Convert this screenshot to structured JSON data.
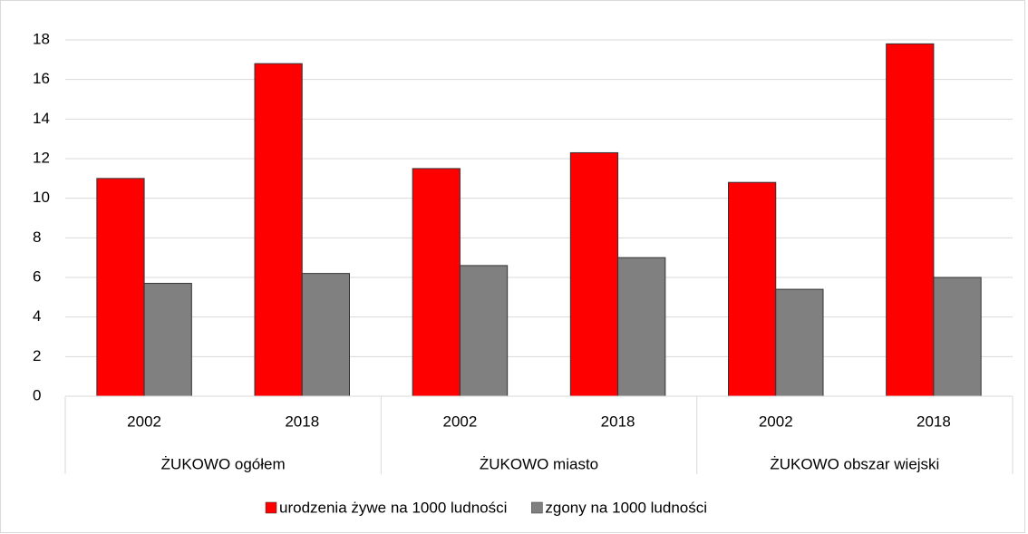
{
  "chart_data": {
    "type": "bar",
    "categories": [
      "2002",
      "2018",
      "2002",
      "2018",
      "2002",
      "2018"
    ],
    "groups": [
      "ŻUKOWO ogółem",
      "ŻUKOWO miasto",
      "ŻUKOWO obszar wiejski"
    ],
    "series": [
      {
        "name": "urodzenia żywe na 1000 ludności",
        "color": "#ff0000",
        "values": [
          11.0,
          16.8,
          11.5,
          12.3,
          10.8,
          17.8
        ]
      },
      {
        "name": "zgony na 1000 ludności",
        "color": "#808080",
        "values": [
          5.7,
          6.2,
          6.6,
          7.0,
          5.4,
          6.0
        ]
      }
    ],
    "ylim": [
      0,
      18
    ],
    "yticks": [
      0,
      2,
      4,
      6,
      8,
      10,
      12,
      14,
      16,
      18
    ],
    "grid": true,
    "legend": "bottom"
  }
}
